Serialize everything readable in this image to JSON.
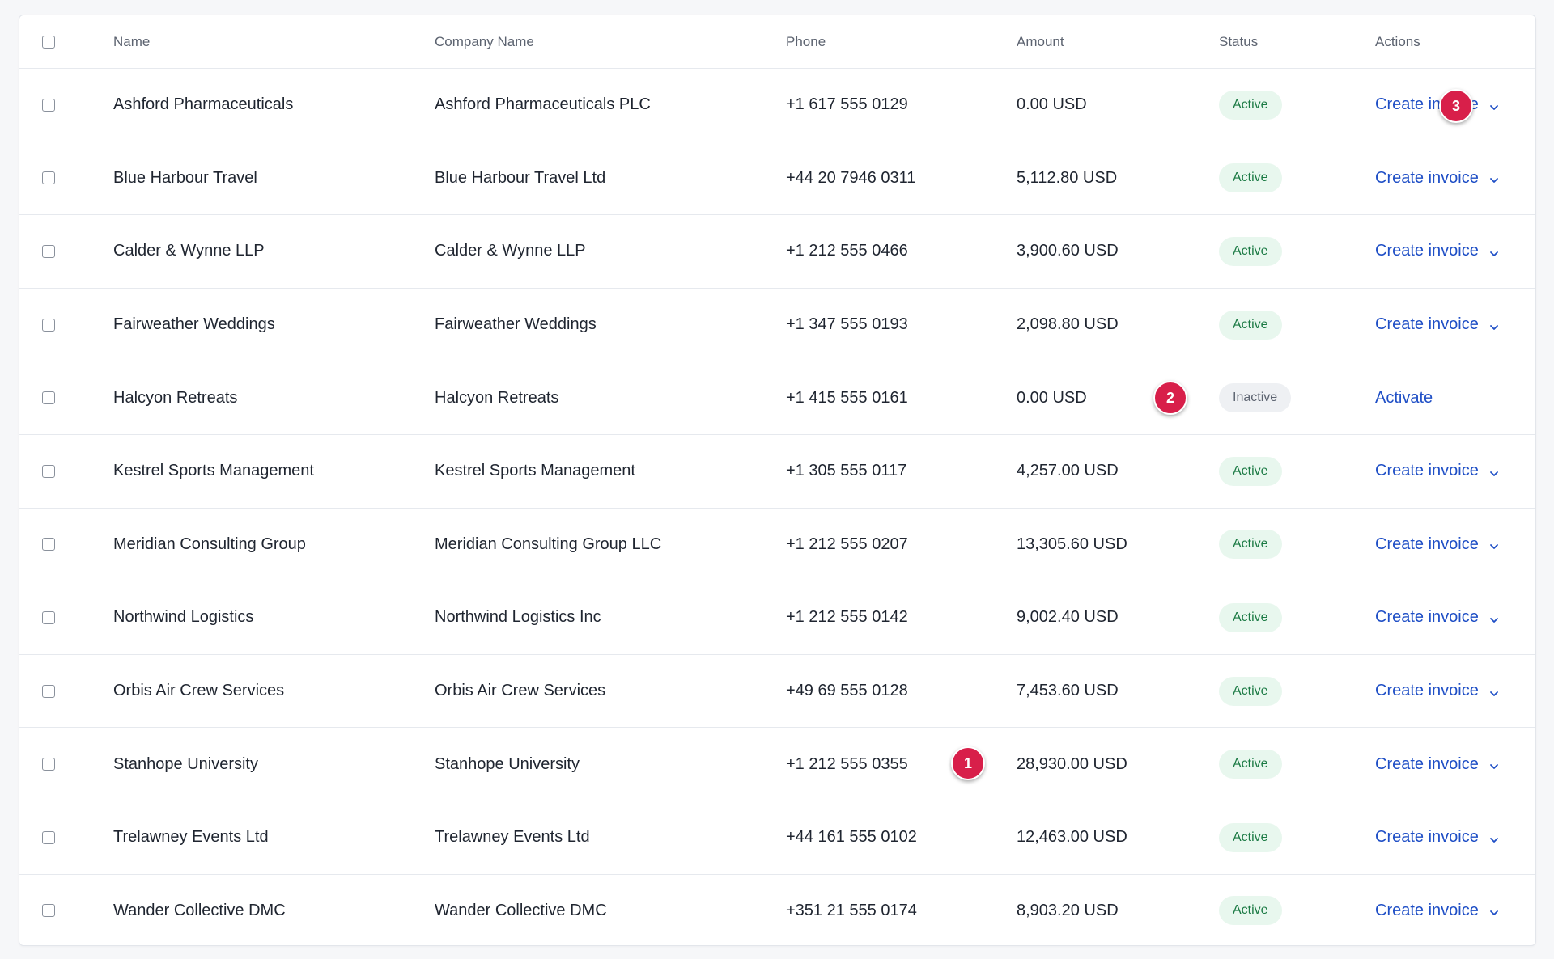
{
  "table": {
    "headers": {
      "name": "Name",
      "company": "Company Name",
      "phone": "Phone",
      "amount": "Amount",
      "status": "Status",
      "actions": "Actions"
    },
    "rows": [
      {
        "name": "Ashford Pharmaceuticals",
        "company": "Ashford Pharmaceuticals PLC",
        "phone": "+1 617 555 0129",
        "amount": "0.00 USD",
        "status": "Active",
        "action": "Create invoice"
      },
      {
        "name": "Blue Harbour Travel",
        "company": "Blue Harbour Travel Ltd",
        "phone": "+44 20 7946 0311",
        "amount": "5,112.80 USD",
        "status": "Active",
        "action": "Create invoice"
      },
      {
        "name": "Calder & Wynne LLP",
        "company": "Calder & Wynne LLP",
        "phone": "+1 212 555 0466",
        "amount": "3,900.60 USD",
        "status": "Active",
        "action": "Create invoice"
      },
      {
        "name": "Fairweather Weddings",
        "company": "Fairweather Weddings",
        "phone": "+1 347 555 0193",
        "amount": "2,098.80 USD",
        "status": "Active",
        "action": "Create invoice"
      },
      {
        "name": "Halcyon Retreats",
        "company": "Halcyon Retreats",
        "phone": "+1 415 555 0161",
        "amount": "0.00 USD",
        "status": "Inactive",
        "action": "Activate"
      },
      {
        "name": "Kestrel Sports Management",
        "company": "Kestrel Sports Management",
        "phone": "+1 305 555 0117",
        "amount": "4,257.00 USD",
        "status": "Active",
        "action": "Create invoice"
      },
      {
        "name": "Meridian Consulting Group",
        "company": "Meridian Consulting Group LLC",
        "phone": "+1 212 555 0207",
        "amount": "13,305.60 USD",
        "status": "Active",
        "action": "Create invoice"
      },
      {
        "name": "Northwind Logistics",
        "company": "Northwind Logistics Inc",
        "phone": "+1 212 555 0142",
        "amount": "9,002.40 USD",
        "status": "Active",
        "action": "Create invoice"
      },
      {
        "name": "Orbis Air Crew Services",
        "company": "Orbis Air Crew Services",
        "phone": "+49 69 555 0128",
        "amount": "7,453.60 USD",
        "status": "Active",
        "action": "Create invoice"
      },
      {
        "name": "Stanhope University",
        "company": "Stanhope University",
        "phone": "+1 212 555 0355",
        "amount": "28,930.00 USD",
        "status": "Active",
        "action": "Create invoice"
      },
      {
        "name": "Trelawney Events Ltd",
        "company": "Trelawney Events Ltd",
        "phone": "+44 161 555 0102",
        "amount": "12,463.00 USD",
        "status": "Active",
        "action": "Create invoice"
      },
      {
        "name": "Wander Collective DMC",
        "company": "Wander Collective DMC",
        "phone": "+351 21 555 0174",
        "amount": "8,903.20 USD",
        "status": "Active",
        "action": "Create invoice"
      }
    ]
  },
  "markers": [
    "1",
    "2",
    "3"
  ],
  "colors": {
    "link": "#1f4fc6",
    "active_bg": "#e8f7ee",
    "active_text": "#1b7a44",
    "inactive_bg": "#eef0f3",
    "marker": "#d81f4a"
  },
  "icons": {
    "dropdown": "chevron-down-icon",
    "select": "checkbox-icon"
  }
}
